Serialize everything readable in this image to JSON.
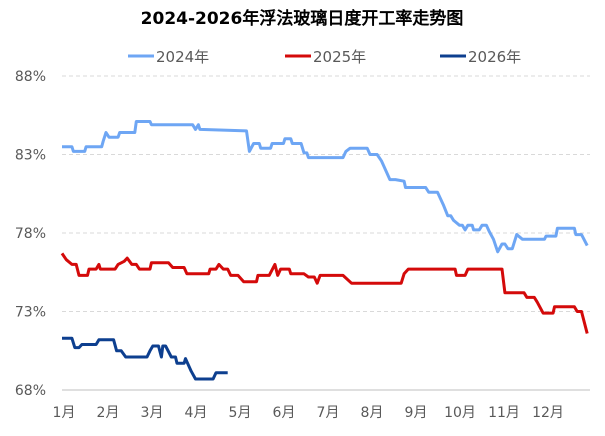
{
  "chart_data": {
    "type": "line",
    "title": "2024-2026年浮法玻璃日度开工率走势图",
    "xlabel": "",
    "ylabel": "",
    "x_tick_labels": [
      "1月",
      "2月",
      "3月",
      "4月",
      "5月",
      "6月",
      "7月",
      "8月",
      "9月",
      "10月",
      "11月",
      "12月"
    ],
    "y_tick_labels": [
      "68%",
      "73%",
      "78%",
      "83%",
      "88%"
    ],
    "y_ticks": [
      68,
      73,
      78,
      83,
      88
    ],
    "ylim": [
      68,
      88
    ],
    "grid": "horizontal dashed",
    "legend_position": "top",
    "series": [
      {
        "name": "2024年",
        "color": "#6ea6f4",
        "points": [
          [
            "01-01",
            83.5
          ],
          [
            "01-08",
            83.5
          ],
          [
            "01-09",
            83.2
          ],
          [
            "01-17",
            83.2
          ],
          [
            "01-18",
            83.5
          ],
          [
            "01-29",
            83.5
          ],
          [
            "01-30",
            83.85
          ],
          [
            "02-01",
            84.4
          ],
          [
            "02-03",
            84.1
          ],
          [
            "02-09",
            84.1
          ],
          [
            "02-10",
            84.4
          ],
          [
            "02-20",
            84.4
          ],
          [
            "02-21",
            85.1
          ],
          [
            "03-01",
            85.1
          ],
          [
            "03-02",
            84.9
          ],
          [
            "03-31",
            84.9
          ],
          [
            "04-02",
            84.6
          ],
          [
            "04-04",
            84.9
          ],
          [
            "04-05",
            84.6
          ],
          [
            "05-07",
            84.5
          ],
          [
            "05-09",
            83.2
          ],
          [
            "05-12",
            83.7
          ],
          [
            "05-16",
            83.7
          ],
          [
            "05-17",
            83.4
          ],
          [
            "05-24",
            83.4
          ],
          [
            "05-25",
            83.7
          ],
          [
            "06-02",
            83.7
          ],
          [
            "06-03",
            84.0
          ],
          [
            "06-07",
            84.0
          ],
          [
            "06-08",
            83.7
          ],
          [
            "06-14",
            83.7
          ],
          [
            "06-16",
            83.1
          ],
          [
            "06-18",
            83.1
          ],
          [
            "06-19",
            82.8
          ],
          [
            "07-13",
            82.8
          ],
          [
            "07-15",
            83.2
          ],
          [
            "07-18",
            83.4
          ],
          [
            "07-30",
            83.4
          ],
          [
            "08-01",
            83.0
          ],
          [
            "08-06",
            83.0
          ],
          [
            "08-09",
            82.6
          ],
          [
            "08-15",
            81.4
          ],
          [
            "08-19",
            81.4
          ],
          [
            "08-25",
            81.3
          ],
          [
            "08-26",
            80.9
          ],
          [
            "09-09",
            80.9
          ],
          [
            "09-11",
            80.6
          ],
          [
            "09-17",
            80.6
          ],
          [
            "09-21",
            79.8
          ],
          [
            "09-24",
            79.1
          ],
          [
            "09-26",
            79.1
          ],
          [
            "09-28",
            78.8
          ],
          [
            "10-02",
            78.5
          ],
          [
            "10-04",
            78.5
          ],
          [
            "10-06",
            78.2
          ],
          [
            "10-08",
            78.5
          ],
          [
            "10-11",
            78.5
          ],
          [
            "10-12",
            78.2
          ],
          [
            "10-16",
            78.2
          ],
          [
            "10-18",
            78.5
          ],
          [
            "10-21",
            78.5
          ],
          [
            "10-23",
            78.1
          ],
          [
            "10-26",
            77.6
          ],
          [
            "10-29",
            76.8
          ],
          [
            "11-01",
            77.3
          ],
          [
            "11-03",
            77.3
          ],
          [
            "11-05",
            77.0
          ],
          [
            "11-08",
            77.0
          ],
          [
            "11-11",
            77.9
          ],
          [
            "11-15",
            77.6
          ],
          [
            "11-30",
            77.6
          ],
          [
            "12-01",
            77.8
          ],
          [
            "12-08",
            77.8
          ],
          [
            "12-09",
            78.3
          ],
          [
            "12-21",
            78.3
          ],
          [
            "12-22",
            77.9
          ],
          [
            "12-26",
            77.9
          ],
          [
            "12-30",
            77.2
          ]
        ]
      },
      {
        "name": "2025年",
        "color": "#d40a0a",
        "points": [
          [
            "01-01",
            76.7
          ],
          [
            "01-04",
            76.3
          ],
          [
            "01-08",
            76.0
          ],
          [
            "01-11",
            76.0
          ],
          [
            "01-13",
            75.3
          ],
          [
            "01-19",
            75.3
          ],
          [
            "01-20",
            75.7
          ],
          [
            "01-25",
            75.7
          ],
          [
            "01-27",
            76.0
          ],
          [
            "01-28",
            75.7
          ],
          [
            "02-07",
            75.7
          ],
          [
            "02-09",
            76.0
          ],
          [
            "02-13",
            76.2
          ],
          [
            "02-15",
            76.4
          ],
          [
            "02-18",
            76.0
          ],
          [
            "02-21",
            76.0
          ],
          [
            "02-23",
            75.7
          ],
          [
            "03-01",
            75.7
          ],
          [
            "03-02",
            76.1
          ],
          [
            "03-14",
            76.1
          ],
          [
            "03-17",
            75.8
          ],
          [
            "03-25",
            75.8
          ],
          [
            "03-27",
            75.4
          ],
          [
            "04-11",
            75.4
          ],
          [
            "04-12",
            75.7
          ],
          [
            "04-16",
            75.7
          ],
          [
            "04-18",
            76.0
          ],
          [
            "04-21",
            75.7
          ],
          [
            "04-24",
            75.7
          ],
          [
            "04-26",
            75.3
          ],
          [
            "05-01",
            75.3
          ],
          [
            "05-05",
            74.9
          ],
          [
            "05-14",
            74.9
          ],
          [
            "05-15",
            75.3
          ],
          [
            "05-23",
            75.3
          ],
          [
            "05-27",
            76.0
          ],
          [
            "05-29",
            75.3
          ],
          [
            "05-31",
            75.7
          ],
          [
            "06-06",
            75.7
          ],
          [
            "06-07",
            75.4
          ],
          [
            "06-16",
            75.4
          ],
          [
            "06-19",
            75.2
          ],
          [
            "06-23",
            75.2
          ],
          [
            "06-25",
            74.8
          ],
          [
            "06-27",
            75.3
          ],
          [
            "07-13",
            75.3
          ],
          [
            "07-19",
            74.8
          ],
          [
            "08-23",
            74.8
          ],
          [
            "08-25",
            75.4
          ],
          [
            "08-28",
            75.7
          ],
          [
            "09-29",
            75.7
          ],
          [
            "09-30",
            75.3
          ],
          [
            "10-06",
            75.3
          ],
          [
            "10-08",
            75.7
          ],
          [
            "11-01",
            75.7
          ],
          [
            "11-03",
            74.2
          ],
          [
            "11-16",
            74.2
          ],
          [
            "11-18",
            73.9
          ],
          [
            "11-23",
            73.9
          ],
          [
            "11-25",
            73.6
          ],
          [
            "11-29",
            72.9
          ],
          [
            "12-06",
            72.9
          ],
          [
            "12-07",
            73.3
          ],
          [
            "12-21",
            73.3
          ],
          [
            "12-23",
            73.0
          ],
          [
            "12-26",
            73.0
          ],
          [
            "12-30",
            71.6
          ]
        ]
      },
      {
        "name": "2026年",
        "color": "#0d3f8f",
        "points": [
          [
            "01-01",
            71.3
          ],
          [
            "01-08",
            71.3
          ],
          [
            "01-10",
            70.7
          ],
          [
            "01-13",
            70.7
          ],
          [
            "01-15",
            70.9
          ],
          [
            "01-25",
            70.9
          ],
          [
            "01-27",
            71.2
          ],
          [
            "02-06",
            71.2
          ],
          [
            "02-08",
            70.5
          ],
          [
            "02-11",
            70.5
          ],
          [
            "02-14",
            70.1
          ],
          [
            "02-28",
            70.1
          ],
          [
            "03-01",
            70.5
          ],
          [
            "03-03",
            70.8
          ],
          [
            "03-07",
            70.8
          ],
          [
            "03-09",
            70.1
          ],
          [
            "03-10",
            70.8
          ],
          [
            "03-12",
            70.8
          ],
          [
            "03-16",
            70.1
          ],
          [
            "03-19",
            70.1
          ],
          [
            "03-20",
            69.7
          ],
          [
            "03-25",
            69.7
          ],
          [
            "03-26",
            70.0
          ],
          [
            "03-30",
            69.2
          ],
          [
            "04-02",
            68.7
          ],
          [
            "04-14",
            68.7
          ],
          [
            "04-16",
            69.1
          ],
          [
            "04-24",
            69.1
          ]
        ]
      }
    ]
  }
}
